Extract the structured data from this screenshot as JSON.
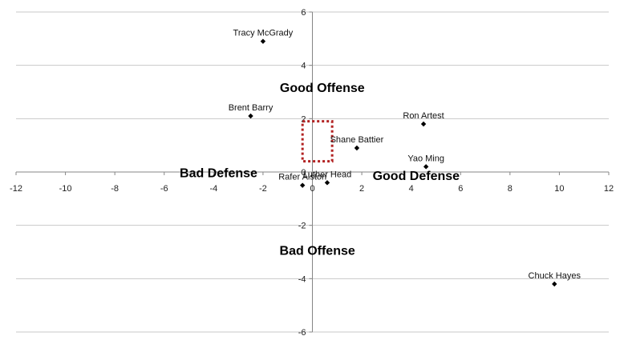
{
  "chart_data": {
    "type": "scatter",
    "title": "",
    "xlabel": "",
    "ylabel": "",
    "xlim": [
      -12,
      12
    ],
    "ylim": [
      -6,
      6
    ],
    "x_ticks": [
      -12,
      -10,
      -8,
      -6,
      -4,
      -2,
      0,
      2,
      4,
      6,
      8,
      10,
      12
    ],
    "y_ticks": [
      -6,
      -4,
      -2,
      0,
      2,
      4,
      6
    ],
    "grid": "horizontal",
    "marker": "diamond",
    "marker_color": "#000000",
    "points": [
      {
        "label": "Tracy McGrady",
        "x": -2.0,
        "y": 4.9
      },
      {
        "label": "Brent Barry",
        "x": -2.5,
        "y": 2.1
      },
      {
        "label": "Ron Artest",
        "x": 4.5,
        "y": 1.8
      },
      {
        "label": "Shane Battier",
        "x": 1.8,
        "y": 0.9
      },
      {
        "label": "Yao Ming",
        "x": 4.6,
        "y": 0.2
      },
      {
        "label": "Luther Head",
        "x": 0.6,
        "y": -0.4
      },
      {
        "label": "Rafer Alston",
        "x": -0.4,
        "y": -0.5
      },
      {
        "label": "Chuck Hayes",
        "x": 9.8,
        "y": -4.2
      }
    ],
    "annotations": [
      {
        "text": "Good Offense",
        "x": 0.4,
        "y": 3.0
      },
      {
        "text": "Bad Defense",
        "x": -3.8,
        "y": -0.2
      },
      {
        "text": "Good Defense",
        "x": 4.2,
        "y": -0.3
      },
      {
        "text": "Bad Offense",
        "x": 0.2,
        "y": -3.1
      }
    ],
    "highlight_box": {
      "x0": -0.4,
      "x1": 0.8,
      "y0": 0.4,
      "y1": 1.9,
      "style": "dotted",
      "color": "#b22222"
    }
  }
}
